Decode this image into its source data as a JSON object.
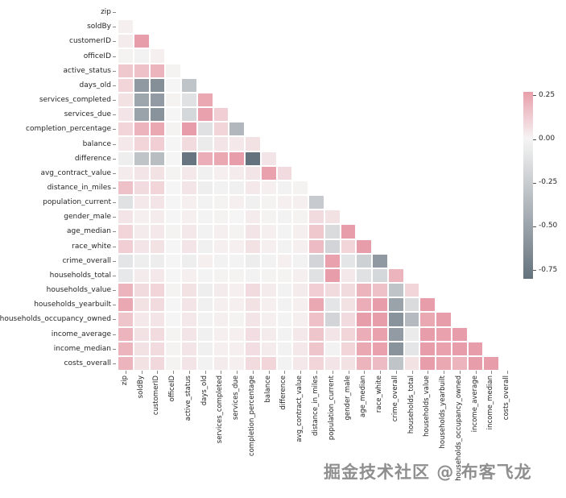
{
  "watermark": "掘金技术社区 @ 布客飞龙",
  "chart_data": {
    "type": "heatmap",
    "title": "",
    "xlabel": "",
    "ylabel": "",
    "mask": "upper-triangle-including-diagonal",
    "grid": false,
    "legend_position": "colorbar-right",
    "variables": [
      "zip",
      "soldBy",
      "customerID",
      "officeID",
      "active_status",
      "days_old",
      "services_completed",
      "services_due",
      "completion_percentage",
      "balance",
      "difference",
      "avg_contract_value",
      "distance_in_miles",
      "population_current",
      "gender_male",
      "age_median",
      "race_white",
      "crime_overall",
      "households_total",
      "households_value",
      "households_yearbuilt",
      "households_occupancy_owned",
      "income_average",
      "income_median",
      "costs_overall"
    ],
    "colormap": {
      "negative": "#64727d",
      "zero": "#f6f5f5",
      "positive": "#e89eaa",
      "vmin": -0.8,
      "vmax": 0.27
    },
    "colorbar": {
      "ticks": [
        {
          "value": 0.25,
          "label": "0.25"
        },
        {
          "value": 0.0,
          "label": "0.00"
        },
        {
          "value": -0.25,
          "label": "-0.25"
        },
        {
          "value": -0.5,
          "label": "-0.50"
        },
        {
          "value": -0.75,
          "label": "-0.75"
        }
      ]
    },
    "matrix_lower_triangle": [
      [],
      [
        0.02
      ],
      [
        0.03,
        0.27
      ],
      [
        0.01,
        -0.02,
        0.02
      ],
      [
        0.14,
        0.16,
        0.2,
        0.01
      ],
      [
        0.1,
        -0.56,
        -0.62,
        0.0,
        -0.3
      ],
      [
        0.06,
        -0.48,
        -0.55,
        0.01,
        -0.12,
        0.24
      ],
      [
        0.05,
        -0.5,
        -0.6,
        0.0,
        -0.18,
        0.26,
        0.12
      ],
      [
        0.1,
        0.2,
        0.24,
        0.01,
        0.3,
        -0.12,
        0.1,
        -0.38
      ],
      [
        0.04,
        0.1,
        0.12,
        0.0,
        0.08,
        -0.06,
        0.05,
        0.04,
        0.06
      ],
      [
        -0.04,
        -0.3,
        -0.34,
        0.0,
        -0.78,
        0.22,
        0.24,
        0.3,
        -0.8,
        0.05
      ],
      [
        0.03,
        0.05,
        0.06,
        0.01,
        0.04,
        -0.03,
        0.02,
        0.03,
        0.05,
        0.26,
        0.08
      ],
      [
        0.16,
        0.08,
        0.1,
        0.0,
        0.05,
        -0.04,
        -0.02,
        -0.03,
        0.04,
        0.02,
        -0.02,
        0.01
      ],
      [
        -0.12,
        0.04,
        0.05,
        0.0,
        0.02,
        -0.02,
        0.01,
        0.02,
        -0.03,
        0.01,
        0.02,
        0.02,
        -0.26
      ],
      [
        0.05,
        0.02,
        0.03,
        0.0,
        0.02,
        -0.01,
        0.01,
        0.0,
        0.03,
        0.01,
        -0.02,
        0.01,
        0.08,
        0.06
      ],
      [
        0.1,
        0.03,
        0.04,
        0.01,
        0.04,
        -0.02,
        0.02,
        0.01,
        0.05,
        0.02,
        -0.01,
        0.02,
        0.14,
        -0.16,
        0.3
      ],
      [
        0.12,
        0.05,
        0.06,
        0.0,
        0.05,
        -0.03,
        0.02,
        0.02,
        0.06,
        0.02,
        -0.02,
        0.02,
        0.18,
        -0.2,
        0.1,
        0.3
      ],
      [
        -0.1,
        -0.04,
        -0.05,
        0.0,
        -0.04,
        0.02,
        -0.02,
        -0.01,
        -0.05,
        -0.02,
        0.02,
        -0.02,
        -0.2,
        0.26,
        -0.1,
        -0.22,
        -0.56
      ],
      [
        -0.08,
        0.03,
        0.04,
        0.0,
        0.02,
        -0.01,
        0.01,
        0.01,
        -0.02,
        0.01,
        0.01,
        0.02,
        -0.12,
        0.3,
        0.04,
        -0.12,
        -0.18,
        0.2
      ],
      [
        0.2,
        0.08,
        0.1,
        0.01,
        0.06,
        -0.04,
        0.03,
        0.02,
        0.08,
        0.03,
        -0.02,
        0.03,
        0.12,
        0.08,
        0.08,
        0.2,
        0.16,
        -0.3,
        0.1
      ],
      [
        0.24,
        0.06,
        0.08,
        0.0,
        0.05,
        -0.03,
        0.02,
        0.02,
        0.06,
        0.02,
        -0.02,
        0.02,
        0.24,
        -0.1,
        0.06,
        0.22,
        0.3,
        -0.5,
        -0.16,
        0.3
      ],
      [
        0.15,
        0.04,
        0.05,
        0.0,
        0.04,
        -0.02,
        0.02,
        0.01,
        0.05,
        0.02,
        -0.01,
        0.02,
        0.16,
        -0.2,
        0.08,
        0.3,
        0.28,
        -0.6,
        -0.36,
        0.24,
        0.3
      ],
      [
        0.2,
        0.06,
        0.08,
        0.01,
        0.05,
        -0.03,
        0.02,
        0.02,
        0.07,
        0.03,
        -0.02,
        0.04,
        0.15,
        0.05,
        0.1,
        0.22,
        0.26,
        -0.55,
        -0.06,
        0.3,
        0.26,
        0.3
      ],
      [
        0.2,
        0.06,
        0.08,
        0.01,
        0.05,
        -0.03,
        0.02,
        0.02,
        0.07,
        0.03,
        -0.02,
        0.04,
        0.15,
        -0.02,
        0.1,
        0.24,
        0.26,
        -0.6,
        -0.1,
        0.3,
        0.26,
        0.3,
        0.9
      ],
      [
        0.2,
        0.06,
        0.09,
        0.01,
        0.05,
        -0.02,
        0.03,
        0.02,
        0.08,
        0.1,
        -0.02,
        0.04,
        0.1,
        0.05,
        0.06,
        0.2,
        0.18,
        -0.3,
        0.06,
        0.3,
        0.24,
        0.2,
        0.3,
        0.3
      ]
    ]
  }
}
